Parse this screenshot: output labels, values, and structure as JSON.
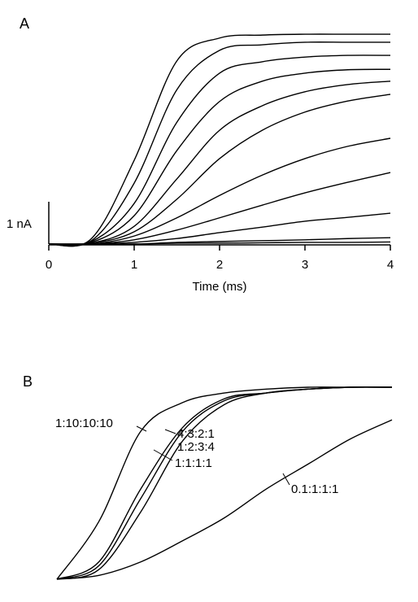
{
  "chart_data": [
    {
      "type": "line",
      "panel_label": "A",
      "xlabel": "Time (ms)",
      "x": [
        0,
        0.5,
        1,
        1.5,
        2,
        2.5,
        3,
        3.5,
        4
      ],
      "xlim": [
        0,
        4
      ],
      "xticks": [
        0,
        1,
        2,
        3,
        4
      ],
      "ylim": [
        0,
        5
      ],
      "scale_bar": {
        "value": 1,
        "label": "1 nA"
      },
      "color": "#000000",
      "series": [
        {
          "values": [
            0,
            0.13,
            1.98,
            4.33,
            4.87,
            4.94,
            4.96,
            4.96,
            4.96
          ]
        },
        {
          "values": [
            0,
            0.08,
            1.44,
            3.65,
            4.58,
            4.71,
            4.77,
            4.77,
            4.77
          ]
        },
        {
          "values": [
            0,
            0.06,
            0.96,
            2.88,
            4.04,
            4.31,
            4.42,
            4.46,
            4.46
          ]
        },
        {
          "values": [
            0,
            0.04,
            0.67,
            2.21,
            3.37,
            3.85,
            4.04,
            4.12,
            4.13
          ]
        },
        {
          "values": [
            0,
            0.02,
            0.42,
            1.54,
            2.69,
            3.27,
            3.6,
            3.77,
            3.85
          ]
        },
        {
          "values": [
            0,
            0.02,
            0.29,
            1.06,
            2.02,
            2.69,
            3.12,
            3.38,
            3.54
          ]
        },
        {
          "values": [
            0,
            0,
            0.19,
            0.62,
            1.15,
            1.63,
            2.02,
            2.31,
            2.5
          ]
        },
        {
          "values": [
            0,
            0,
            0.1,
            0.33,
            0.62,
            0.92,
            1.21,
            1.46,
            1.69
          ]
        },
        {
          "values": [
            0,
            0,
            0.04,
            0.13,
            0.27,
            0.4,
            0.54,
            0.63,
            0.73
          ]
        },
        {
          "values": [
            0,
            0,
            0,
            0.04,
            0.06,
            0.08,
            0.1,
            0.13,
            0.15
          ]
        },
        {
          "values": [
            0,
            0,
            0,
            0.02,
            0.02,
            0.03,
            0.04,
            0.04,
            0.05
          ]
        }
      ]
    },
    {
      "type": "line",
      "panel_label": "B",
      "x": [
        0,
        0.125,
        0.25,
        0.375,
        0.5,
        0.625,
        0.75,
        0.875,
        1
      ],
      "xlim": [
        0,
        1
      ],
      "ylim": [
        0,
        1
      ],
      "color": "#000000",
      "series": [
        {
          "name": "1:10:10:10",
          "values": [
            0,
            0.3,
            0.77,
            0.92,
            0.97,
            0.99,
            1,
            1,
            1
          ]
        },
        {
          "name": "4:3:2:1",
          "values": [
            0,
            0.09,
            0.47,
            0.79,
            0.94,
            0.97,
            0.99,
            1,
            1
          ]
        },
        {
          "name": "1:2:3:4",
          "values": [
            0,
            0.07,
            0.42,
            0.77,
            0.93,
            0.97,
            0.99,
            1,
            1
          ]
        },
        {
          "name": "1:1:1:1",
          "values": [
            0,
            0.05,
            0.35,
            0.72,
            0.91,
            0.97,
            0.99,
            1,
            1
          ]
        },
        {
          "name": "0.1:1:1:1",
          "values": [
            0,
            0.02,
            0.09,
            0.2,
            0.32,
            0.47,
            0.6,
            0.73,
            0.83
          ]
        }
      ]
    }
  ]
}
